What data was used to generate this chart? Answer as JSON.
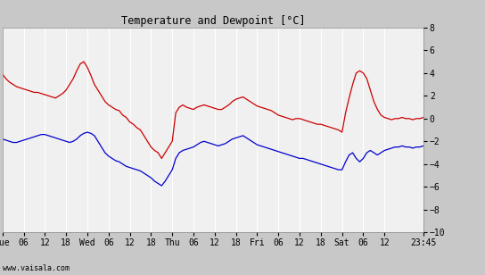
{
  "title": "Temperature and Dewpoint [°C]",
  "ylim": [
    -10,
    8
  ],
  "yticks": [
    -10,
    -8,
    -6,
    -4,
    -2,
    0,
    2,
    4,
    6,
    8
  ],
  "background_color": "#c8c8c8",
  "plot_bg_color": "#f0f0f0",
  "grid_color": "#ffffff",
  "temp_color": "#cc0000",
  "dewp_color": "#0000cc",
  "watermark": "www.vaisala.com",
  "xtick_labels": [
    "Tue",
    "06",
    "12",
    "18",
    "Wed",
    "06",
    "12",
    "18",
    "Thu",
    "06",
    "12",
    "18",
    "Fri",
    "06",
    "12",
    "18",
    "Sat",
    "06",
    "12",
    "23:45"
  ],
  "xtick_positions": [
    0,
    6,
    12,
    18,
    24,
    30,
    36,
    42,
    48,
    54,
    60,
    66,
    72,
    78,
    84,
    90,
    96,
    102,
    108,
    119
  ],
  "total_hours": 119,
  "temp_data": [
    [
      0,
      3.9
    ],
    [
      1,
      3.5
    ],
    [
      2,
      3.2
    ],
    [
      3,
      3.0
    ],
    [
      4,
      2.8
    ],
    [
      5,
      2.7
    ],
    [
      6,
      2.6
    ],
    [
      7,
      2.5
    ],
    [
      8,
      2.4
    ],
    [
      9,
      2.3
    ],
    [
      10,
      2.3
    ],
    [
      11,
      2.2
    ],
    [
      12,
      2.1
    ],
    [
      13,
      2.0
    ],
    [
      14,
      1.9
    ],
    [
      15,
      1.8
    ],
    [
      16,
      2.0
    ],
    [
      17,
      2.2
    ],
    [
      18,
      2.5
    ],
    [
      19,
      3.0
    ],
    [
      20,
      3.5
    ],
    [
      21,
      4.2
    ],
    [
      22,
      4.8
    ],
    [
      23,
      5.0
    ],
    [
      24,
      4.5
    ],
    [
      25,
      3.8
    ],
    [
      26,
      3.0
    ],
    [
      27,
      2.5
    ],
    [
      28,
      2.0
    ],
    [
      29,
      1.5
    ],
    [
      30,
      1.2
    ],
    [
      31,
      1.0
    ],
    [
      32,
      0.8
    ],
    [
      33,
      0.7
    ],
    [
      34,
      0.3
    ],
    [
      35,
      0.1
    ],
    [
      36,
      -0.3
    ],
    [
      37,
      -0.5
    ],
    [
      38,
      -0.8
    ],
    [
      39,
      -1.0
    ],
    [
      40,
      -1.5
    ],
    [
      41,
      -2.0
    ],
    [
      42,
      -2.5
    ],
    [
      43,
      -2.8
    ],
    [
      44,
      -3.0
    ],
    [
      45,
      -3.5
    ],
    [
      46,
      -3.0
    ],
    [
      47,
      -2.5
    ],
    [
      48,
      -2.0
    ],
    [
      49,
      0.5
    ],
    [
      50,
      1.0
    ],
    [
      51,
      1.2
    ],
    [
      52,
      1.0
    ],
    [
      53,
      0.9
    ],
    [
      54,
      0.8
    ],
    [
      55,
      1.0
    ],
    [
      56,
      1.1
    ],
    [
      57,
      1.2
    ],
    [
      58,
      1.1
    ],
    [
      59,
      1.0
    ],
    [
      60,
      0.9
    ],
    [
      61,
      0.8
    ],
    [
      62,
      0.8
    ],
    [
      63,
      1.0
    ],
    [
      64,
      1.2
    ],
    [
      65,
      1.5
    ],
    [
      66,
      1.7
    ],
    [
      67,
      1.8
    ],
    [
      68,
      1.9
    ],
    [
      69,
      1.7
    ],
    [
      70,
      1.5
    ],
    [
      71,
      1.3
    ],
    [
      72,
      1.1
    ],
    [
      73,
      1.0
    ],
    [
      74,
      0.9
    ],
    [
      75,
      0.8
    ],
    [
      76,
      0.7
    ],
    [
      77,
      0.5
    ],
    [
      78,
      0.3
    ],
    [
      79,
      0.2
    ],
    [
      80,
      0.1
    ],
    [
      81,
      0.0
    ],
    [
      82,
      -0.1
    ],
    [
      83,
      0.0
    ],
    [
      84,
      0.0
    ],
    [
      85,
      -0.1
    ],
    [
      86,
      -0.2
    ],
    [
      87,
      -0.3
    ],
    [
      88,
      -0.4
    ],
    [
      89,
      -0.5
    ],
    [
      90,
      -0.5
    ],
    [
      91,
      -0.6
    ],
    [
      92,
      -0.7
    ],
    [
      93,
      -0.8
    ],
    [
      94,
      -0.9
    ],
    [
      95,
      -1.0
    ],
    [
      96,
      -1.2
    ],
    [
      97,
      0.5
    ],
    [
      98,
      1.8
    ],
    [
      99,
      3.0
    ],
    [
      100,
      4.0
    ],
    [
      101,
      4.2
    ],
    [
      102,
      4.0
    ],
    [
      103,
      3.5
    ],
    [
      104,
      2.5
    ],
    [
      105,
      1.5
    ],
    [
      106,
      0.8
    ],
    [
      107,
      0.3
    ],
    [
      108,
      0.1
    ],
    [
      109,
      0.0
    ],
    [
      110,
      -0.1
    ],
    [
      111,
      0.0
    ],
    [
      112,
      0.0
    ],
    [
      113,
      0.1
    ],
    [
      114,
      0.0
    ],
    [
      115,
      0.0
    ],
    [
      116,
      -0.1
    ],
    [
      117,
      0.0
    ],
    [
      118,
      0.0
    ],
    [
      119,
      0.1
    ]
  ],
  "dewp_data": [
    [
      0,
      -1.8
    ],
    [
      1,
      -1.9
    ],
    [
      2,
      -2.0
    ],
    [
      3,
      -2.1
    ],
    [
      4,
      -2.1
    ],
    [
      5,
      -2.0
    ],
    [
      6,
      -1.9
    ],
    [
      7,
      -1.8
    ],
    [
      8,
      -1.7
    ],
    [
      9,
      -1.6
    ],
    [
      10,
      -1.5
    ],
    [
      11,
      -1.4
    ],
    [
      12,
      -1.4
    ],
    [
      13,
      -1.5
    ],
    [
      14,
      -1.6
    ],
    [
      15,
      -1.7
    ],
    [
      16,
      -1.8
    ],
    [
      17,
      -1.9
    ],
    [
      18,
      -2.0
    ],
    [
      19,
      -2.1
    ],
    [
      20,
      -2.0
    ],
    [
      21,
      -1.8
    ],
    [
      22,
      -1.5
    ],
    [
      23,
      -1.3
    ],
    [
      24,
      -1.2
    ],
    [
      25,
      -1.3
    ],
    [
      26,
      -1.5
    ],
    [
      27,
      -2.0
    ],
    [
      28,
      -2.5
    ],
    [
      29,
      -3.0
    ],
    [
      30,
      -3.3
    ],
    [
      31,
      -3.5
    ],
    [
      32,
      -3.7
    ],
    [
      33,
      -3.8
    ],
    [
      34,
      -4.0
    ],
    [
      35,
      -4.2
    ],
    [
      36,
      -4.3
    ],
    [
      37,
      -4.4
    ],
    [
      38,
      -4.5
    ],
    [
      39,
      -4.6
    ],
    [
      40,
      -4.8
    ],
    [
      41,
      -5.0
    ],
    [
      42,
      -5.2
    ],
    [
      43,
      -5.5
    ],
    [
      44,
      -5.7
    ],
    [
      45,
      -5.9
    ],
    [
      46,
      -5.5
    ],
    [
      47,
      -5.0
    ],
    [
      48,
      -4.5
    ],
    [
      49,
      -3.5
    ],
    [
      50,
      -3.0
    ],
    [
      51,
      -2.8
    ],
    [
      52,
      -2.7
    ],
    [
      53,
      -2.6
    ],
    [
      54,
      -2.5
    ],
    [
      55,
      -2.3
    ],
    [
      56,
      -2.1
    ],
    [
      57,
      -2.0
    ],
    [
      58,
      -2.1
    ],
    [
      59,
      -2.2
    ],
    [
      60,
      -2.3
    ],
    [
      61,
      -2.4
    ],
    [
      62,
      -2.3
    ],
    [
      63,
      -2.2
    ],
    [
      64,
      -2.0
    ],
    [
      65,
      -1.8
    ],
    [
      66,
      -1.7
    ],
    [
      67,
      -1.6
    ],
    [
      68,
      -1.5
    ],
    [
      69,
      -1.7
    ],
    [
      70,
      -1.9
    ],
    [
      71,
      -2.1
    ],
    [
      72,
      -2.3
    ],
    [
      73,
      -2.4
    ],
    [
      74,
      -2.5
    ],
    [
      75,
      -2.6
    ],
    [
      76,
      -2.7
    ],
    [
      77,
      -2.8
    ],
    [
      78,
      -2.9
    ],
    [
      79,
      -3.0
    ],
    [
      80,
      -3.1
    ],
    [
      81,
      -3.2
    ],
    [
      82,
      -3.3
    ],
    [
      83,
      -3.4
    ],
    [
      84,
      -3.5
    ],
    [
      85,
      -3.5
    ],
    [
      86,
      -3.6
    ],
    [
      87,
      -3.7
    ],
    [
      88,
      -3.8
    ],
    [
      89,
      -3.9
    ],
    [
      90,
      -4.0
    ],
    [
      91,
      -4.1
    ],
    [
      92,
      -4.2
    ],
    [
      93,
      -4.3
    ],
    [
      94,
      -4.4
    ],
    [
      95,
      -4.5
    ],
    [
      96,
      -4.5
    ],
    [
      97,
      -3.8
    ],
    [
      98,
      -3.2
    ],
    [
      99,
      -3.0
    ],
    [
      100,
      -3.5
    ],
    [
      101,
      -3.8
    ],
    [
      102,
      -3.5
    ],
    [
      103,
      -3.0
    ],
    [
      104,
      -2.8
    ],
    [
      105,
      -3.0
    ],
    [
      106,
      -3.2
    ],
    [
      107,
      -3.0
    ],
    [
      108,
      -2.8
    ],
    [
      109,
      -2.7
    ],
    [
      110,
      -2.6
    ],
    [
      111,
      -2.5
    ],
    [
      112,
      -2.5
    ],
    [
      113,
      -2.4
    ],
    [
      114,
      -2.5
    ],
    [
      115,
      -2.5
    ],
    [
      116,
      -2.6
    ],
    [
      117,
      -2.5
    ],
    [
      118,
      -2.5
    ],
    [
      119,
      -2.4
    ]
  ]
}
